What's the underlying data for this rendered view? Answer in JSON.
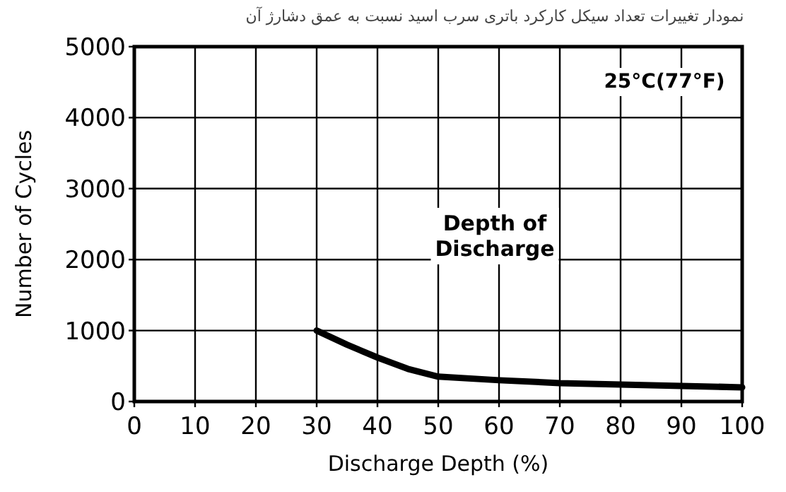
{
  "chart_data": {
    "type": "line",
    "title": "نمودار تغییرات تعداد سیکل کارکرد باتری سرب اسید نسبت به عمق دشارژ آن",
    "xlabel": "Discharge Depth (%)",
    "ylabel": "Number of Cycles",
    "annotations": [
      "25°C(77°F)",
      "Depth of Discharge"
    ],
    "x": [
      30,
      35,
      40,
      45,
      50,
      60,
      70,
      80,
      90,
      100
    ],
    "series": [
      {
        "color": "#000000",
        "values": [
          1000,
          800,
          620,
          460,
          350,
          300,
          260,
          240,
          220,
          200
        ]
      }
    ],
    "xlim": [
      0,
      100
    ],
    "xticks": [
      0,
      10,
      20,
      30,
      40,
      50,
      60,
      70,
      80,
      90,
      100
    ],
    "ylim": [
      0,
      5000
    ],
    "yticks": [
      0,
      1000,
      2000,
      3000,
      4000,
      5000
    ],
    "grid": true,
    "marker": "none",
    "line_style": "solid"
  }
}
